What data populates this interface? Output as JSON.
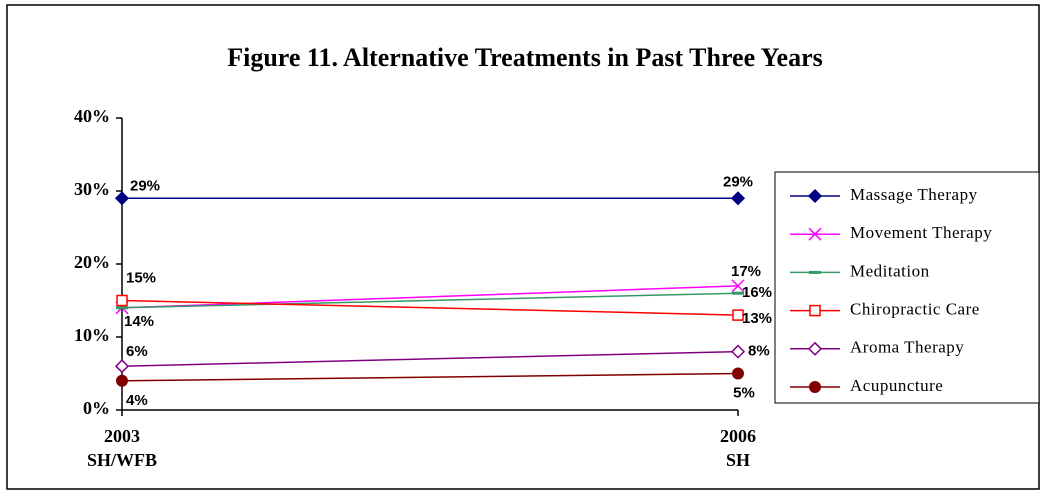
{
  "chart_data": {
    "type": "line",
    "title": "Figure 11. Alternative Treatments in Past Three Years",
    "categories": [
      "2003\nSH/WFB",
      "2006\nSH"
    ],
    "ylim": [
      0,
      40
    ],
    "yticks": [
      {
        "value": 0,
        "label": "0%"
      },
      {
        "value": 10,
        "label": "10%"
      },
      {
        "value": 20,
        "label": "20%"
      },
      {
        "value": 30,
        "label": "30%"
      },
      {
        "value": 40,
        "label": "40%"
      }
    ],
    "legend": "right",
    "series": [
      {
        "name": "Massage Therapy",
        "color": "#000080",
        "marker": "diamond-filled",
        "values": [
          29,
          29
        ],
        "value_labels": [
          "29%",
          "29%"
        ]
      },
      {
        "name": "Movement Therapy",
        "color": "#ff00ff",
        "marker": "x",
        "values": [
          14,
          17
        ],
        "value_labels": [
          "14%",
          "17%"
        ]
      },
      {
        "name": "Meditation",
        "color": "#339966",
        "marker": "dash",
        "values": [
          14,
          16
        ],
        "value_labels": [
          null,
          "16%"
        ]
      },
      {
        "name": "Chiropractic Care",
        "color": "#ff0000",
        "marker": "square-open",
        "values": [
          15,
          13
        ],
        "value_labels": [
          "15%",
          "13%"
        ]
      },
      {
        "name": "Aroma Therapy",
        "color": "#800080",
        "marker": "diamond-open",
        "values": [
          6,
          8
        ],
        "value_labels": [
          "6%",
          "8%"
        ]
      },
      {
        "name": "Acupuncture",
        "color": "#800000",
        "marker": "circle-filled",
        "values": [
          4,
          5
        ],
        "value_labels": [
          "4%",
          "5%"
        ]
      }
    ]
  }
}
